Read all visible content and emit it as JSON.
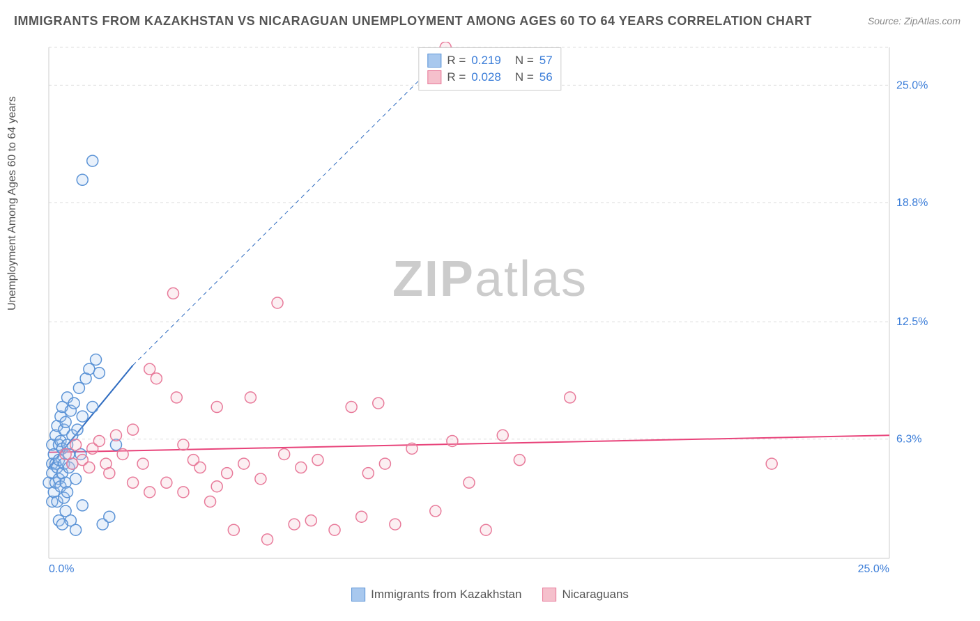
{
  "title": "IMMIGRANTS FROM KAZAKHSTAN VS NICARAGUAN UNEMPLOYMENT AMONG AGES 60 TO 64 YEARS CORRELATION CHART",
  "source": "Source: ZipAtlas.com",
  "ylabel": "Unemployment Among Ages 60 to 64 years",
  "watermark_bold": "ZIP",
  "watermark_light": "atlas",
  "chart": {
    "type": "scatter",
    "xlim": [
      0,
      25
    ],
    "ylim": [
      0,
      27
    ],
    "background_color": "#ffffff",
    "grid_color": "#dddddd",
    "axis_color": "#cccccc",
    "y_gridlines": [
      6.3,
      12.5,
      18.8,
      25.0,
      27.0
    ],
    "y_tick_labels": [
      "6.3%",
      "12.5%",
      "18.8%",
      "25.0%"
    ],
    "y_tick_values": [
      6.3,
      12.5,
      18.8,
      25.0
    ],
    "x_tick_left": "0.0%",
    "x_tick_right": "25.0%",
    "tick_color": "#3b7dd8",
    "tick_fontsize": 16,
    "marker_radius": 8,
    "marker_stroke_width": 1.5,
    "marker_fill_opacity": 0.25,
    "series": [
      {
        "name": "Immigrants from Kazakhstan",
        "color_fill": "#a8c8ee",
        "color_stroke": "#5b93d6",
        "R": "0.219",
        "N": "57",
        "trend": {
          "x1": 0,
          "y1": 4.8,
          "x2": 2.5,
          "y2": 10.2,
          "x2_dash": 12.0,
          "y2_dash": 27.0,
          "color": "#2e6bc0",
          "width": 2
        },
        "points": [
          [
            0.0,
            4.0
          ],
          [
            0.1,
            5.0
          ],
          [
            0.1,
            3.0
          ],
          [
            0.1,
            6.0
          ],
          [
            0.1,
            4.5
          ],
          [
            0.15,
            5.5
          ],
          [
            0.15,
            3.5
          ],
          [
            0.2,
            6.5
          ],
          [
            0.2,
            4.0
          ],
          [
            0.2,
            5.0
          ],
          [
            0.25,
            7.0
          ],
          [
            0.25,
            3.0
          ],
          [
            0.25,
            4.8
          ],
          [
            0.3,
            6.0
          ],
          [
            0.3,
            5.2
          ],
          [
            0.3,
            4.2
          ],
          [
            0.35,
            7.5
          ],
          [
            0.35,
            3.8
          ],
          [
            0.35,
            6.2
          ],
          [
            0.4,
            4.5
          ],
          [
            0.4,
            5.8
          ],
          [
            0.4,
            8.0
          ],
          [
            0.45,
            3.2
          ],
          [
            0.45,
            6.8
          ],
          [
            0.45,
            5.0
          ],
          [
            0.5,
            7.2
          ],
          [
            0.5,
            4.0
          ],
          [
            0.5,
            2.5
          ],
          [
            0.55,
            6.0
          ],
          [
            0.55,
            8.5
          ],
          [
            0.55,
            3.5
          ],
          [
            0.6,
            5.5
          ],
          [
            0.6,
            4.8
          ],
          [
            0.65,
            7.8
          ],
          [
            0.65,
            2.0
          ],
          [
            0.7,
            6.5
          ],
          [
            0.7,
            5.0
          ],
          [
            0.75,
            8.2
          ],
          [
            0.8,
            4.2
          ],
          [
            0.8,
            1.5
          ],
          [
            0.85,
            6.8
          ],
          [
            0.9,
            9.0
          ],
          [
            0.95,
            5.5
          ],
          [
            1.0,
            7.5
          ],
          [
            1.0,
            2.8
          ],
          [
            1.1,
            9.5
          ],
          [
            1.2,
            10.0
          ],
          [
            1.3,
            8.0
          ],
          [
            1.4,
            10.5
          ],
          [
            1.5,
            9.8
          ],
          [
            1.6,
            1.8
          ],
          [
            1.8,
            2.2
          ],
          [
            2.0,
            6.0
          ],
          [
            1.0,
            20.0
          ],
          [
            1.3,
            21.0
          ],
          [
            0.3,
            2.0
          ],
          [
            0.4,
            1.8
          ]
        ]
      },
      {
        "name": "Nicaraguans",
        "color_fill": "#f5c0cc",
        "color_stroke": "#e87a9a",
        "R": "0.028",
        "N": "56",
        "trend": {
          "x1": 0,
          "y1": 5.6,
          "x2": 25,
          "y2": 6.5,
          "color": "#e8437a",
          "width": 2
        },
        "points": [
          [
            0.5,
            5.5
          ],
          [
            0.7,
            5.0
          ],
          [
            0.8,
            6.0
          ],
          [
            1.0,
            5.2
          ],
          [
            1.2,
            4.8
          ],
          [
            1.3,
            5.8
          ],
          [
            1.5,
            6.2
          ],
          [
            1.7,
            5.0
          ],
          [
            1.8,
            4.5
          ],
          [
            2.0,
            6.5
          ],
          [
            2.2,
            5.5
          ],
          [
            2.5,
            6.8
          ],
          [
            2.8,
            5.0
          ],
          [
            3.0,
            10.0
          ],
          [
            3.2,
            9.5
          ],
          [
            3.5,
            4.0
          ],
          [
            3.7,
            14.0
          ],
          [
            3.8,
            8.5
          ],
          [
            4.0,
            3.5
          ],
          [
            4.3,
            5.2
          ],
          [
            4.5,
            4.8
          ],
          [
            4.8,
            3.0
          ],
          [
            5.0,
            8.0
          ],
          [
            5.3,
            4.5
          ],
          [
            5.5,
            1.5
          ],
          [
            5.8,
            5.0
          ],
          [
            6.0,
            8.5
          ],
          [
            6.3,
            4.2
          ],
          [
            6.5,
            1.0
          ],
          [
            6.8,
            13.5
          ],
          [
            7.0,
            5.5
          ],
          [
            7.3,
            1.8
          ],
          [
            7.5,
            4.8
          ],
          [
            7.8,
            2.0
          ],
          [
            8.0,
            5.2
          ],
          [
            8.5,
            1.5
          ],
          [
            9.0,
            8.0
          ],
          [
            9.3,
            2.2
          ],
          [
            9.5,
            4.5
          ],
          [
            9.8,
            8.2
          ],
          [
            10.0,
            5.0
          ],
          [
            10.3,
            1.8
          ],
          [
            10.8,
            5.8
          ],
          [
            11.5,
            2.5
          ],
          [
            12.0,
            6.2
          ],
          [
            12.5,
            4.0
          ],
          [
            13.0,
            1.5
          ],
          [
            13.5,
            6.5
          ],
          [
            14.0,
            5.2
          ],
          [
            15.5,
            8.5
          ],
          [
            11.8,
            27.0
          ],
          [
            21.5,
            5.0
          ],
          [
            2.5,
            4.0
          ],
          [
            3.0,
            3.5
          ],
          [
            4.0,
            6.0
          ],
          [
            5.0,
            3.8
          ]
        ]
      }
    ],
    "legend_top": {
      "R_label": "R =",
      "N_label": "N ="
    },
    "legend_bottom_label_a": "Immigrants from Kazakhstan",
    "legend_bottom_label_b": "Nicaraguans"
  }
}
